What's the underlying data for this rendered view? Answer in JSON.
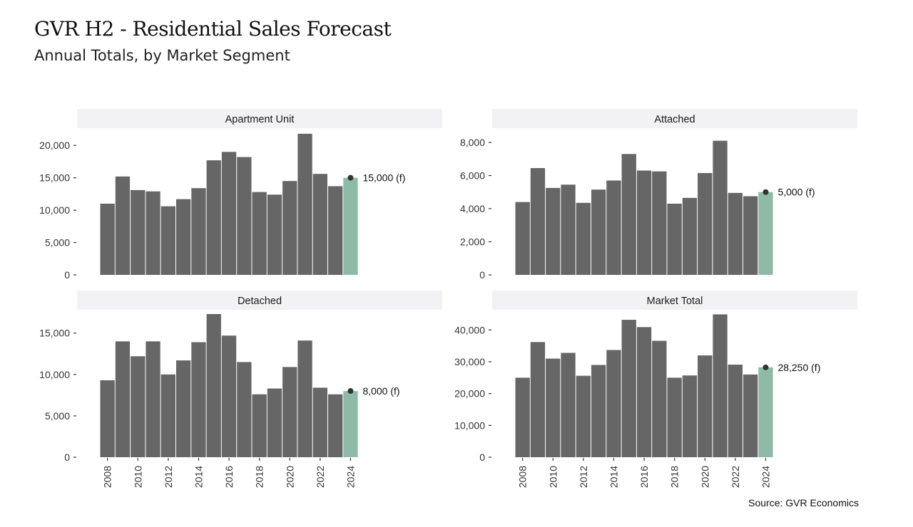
{
  "title": "GVR H2 - Residential Sales Forecast",
  "subtitle": "Annual Totals, by Market Segment",
  "source": "Source: GVR Economics",
  "colors": {
    "actual": "#666666",
    "forecast": "#8fbaa8",
    "strip": "#f2f2f4",
    "point": "#333333"
  },
  "chart_data": [
    {
      "type": "bar",
      "title": "Apartment Unit",
      "x": [
        2008,
        2009,
        2010,
        2011,
        2012,
        2013,
        2014,
        2015,
        2016,
        2017,
        2018,
        2019,
        2020,
        2021,
        2022,
        2023,
        2024
      ],
      "values": [
        11000,
        15200,
        13100,
        12900,
        10600,
        11700,
        13400,
        17700,
        19000,
        18200,
        12800,
        12400,
        14500,
        21800,
        15600,
        13700,
        15000
      ],
      "forecast_year": 2024,
      "forecast_label": "15,000 (f)",
      "ylim": [
        0,
        22000
      ],
      "yticks": [
        0,
        5000,
        10000,
        15000,
        20000
      ],
      "ytick_labels": [
        "0",
        "5,000",
        "10,000",
        "15,000",
        "20,000"
      ]
    },
    {
      "type": "bar",
      "title": "Attached",
      "x": [
        2008,
        2009,
        2010,
        2011,
        2012,
        2013,
        2014,
        2015,
        2016,
        2017,
        2018,
        2019,
        2020,
        2021,
        2022,
        2023,
        2024
      ],
      "values": [
        4400,
        6450,
        5250,
        5450,
        4350,
        5150,
        5700,
        7300,
        6300,
        6250,
        4300,
        4650,
        6150,
        8100,
        4950,
        4750,
        5000
      ],
      "forecast_year": 2024,
      "forecast_label": "5,000 (f)",
      "ylim": [
        0,
        8600
      ],
      "yticks": [
        0,
        2000,
        4000,
        6000,
        8000
      ],
      "ytick_labels": [
        "0",
        "2,000",
        "4,000",
        "6,000",
        "8,000"
      ]
    },
    {
      "type": "bar",
      "title": "Detached",
      "x": [
        2008,
        2009,
        2010,
        2011,
        2012,
        2013,
        2014,
        2015,
        2016,
        2017,
        2018,
        2019,
        2020,
        2021,
        2022,
        2023,
        2024
      ],
      "values": [
        9300,
        14000,
        12200,
        14000,
        10000,
        11700,
        13900,
        17300,
        14700,
        11500,
        7600,
        8300,
        10900,
        14100,
        8400,
        7600,
        8000
      ],
      "forecast_year": 2024,
      "forecast_label": "8,000 (f)",
      "ylim": [
        0,
        17300
      ],
      "yticks": [
        0,
        5000,
        10000,
        15000
      ],
      "ytick_labels": [
        "0",
        "5,000",
        "10,000",
        "15,000"
      ],
      "xticks": [
        2008,
        2010,
        2012,
        2014,
        2016,
        2018,
        2020,
        2022,
        2024
      ]
    },
    {
      "type": "bar",
      "title": "Market Total",
      "x": [
        2008,
        2009,
        2010,
        2011,
        2012,
        2013,
        2014,
        2015,
        2016,
        2017,
        2018,
        2019,
        2020,
        2021,
        2022,
        2023,
        2024
      ],
      "values": [
        25000,
        36200,
        31000,
        32800,
        25600,
        29000,
        33700,
        43200,
        40900,
        36600,
        25000,
        25700,
        32000,
        44900,
        29100,
        26000,
        28250
      ],
      "forecast_year": 2024,
      "forecast_label": "28,250 (f)",
      "ylim": [
        0,
        45000
      ],
      "yticks": [
        0,
        10000,
        20000,
        30000,
        40000
      ],
      "ytick_labels": [
        "0",
        "10,000",
        "20,000",
        "30,000",
        "40,000"
      ],
      "xticks": [
        2008,
        2010,
        2012,
        2014,
        2016,
        2018,
        2020,
        2022,
        2024
      ]
    }
  ]
}
